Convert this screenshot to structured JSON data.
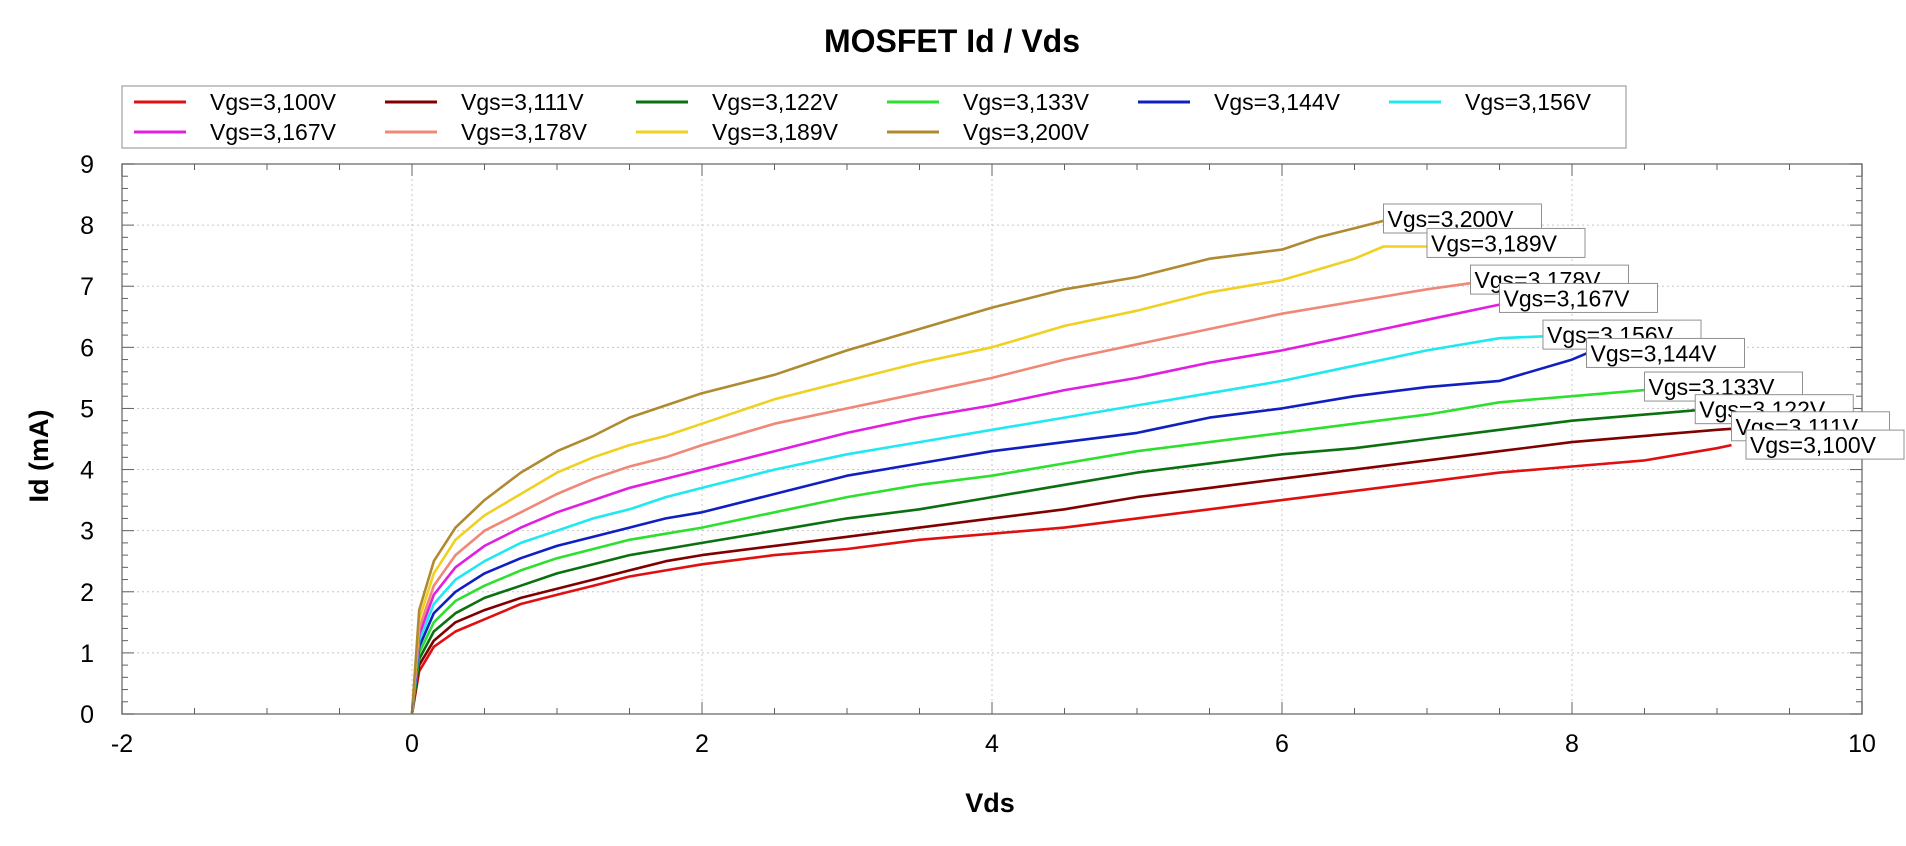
{
  "chart_data": {
    "type": "line",
    "title": "MOSFET Id / Vds",
    "xlabel": "Vds",
    "ylabel": "Id (mA)",
    "xlim": [
      -2,
      10
    ],
    "ylim": [
      0,
      9
    ],
    "x_ticks": [
      "-2",
      "0",
      "2",
      "4",
      "6",
      "8",
      "10"
    ],
    "y_ticks": [
      "0",
      "1",
      "2",
      "3",
      "4",
      "5",
      "6",
      "7",
      "8",
      "9"
    ],
    "grid": true,
    "legend_position": "top",
    "series": [
      {
        "name": "Vgs=3,100V",
        "color": "#e01010",
        "x": [
          0,
          0.05,
          0.15,
          0.3,
          0.5,
          0.75,
          1.0,
          1.25,
          1.5,
          1.75,
          2.0,
          2.5,
          3.0,
          3.5,
          4.0,
          4.5,
          5.0,
          5.5,
          6.0,
          6.5,
          7.0,
          7.5,
          8.0,
          8.5,
          9.0,
          9.1
        ],
        "y": [
          0,
          0.7,
          1.1,
          1.35,
          1.55,
          1.8,
          1.95,
          2.1,
          2.25,
          2.35,
          2.45,
          2.6,
          2.7,
          2.85,
          2.95,
          3.05,
          3.2,
          3.35,
          3.5,
          3.65,
          3.8,
          3.95,
          4.05,
          4.15,
          4.35,
          4.4
        ]
      },
      {
        "name": "Vgs=3,111V",
        "color": "#800000",
        "x": [
          0,
          0.05,
          0.15,
          0.3,
          0.5,
          0.75,
          1.0,
          1.25,
          1.5,
          1.75,
          2.0,
          2.5,
          3.0,
          3.5,
          4.0,
          4.5,
          5.0,
          5.5,
          6.0,
          6.5,
          7.0,
          7.5,
          8.0,
          8.5,
          9.0,
          9.3
        ],
        "y": [
          0,
          0.8,
          1.2,
          1.5,
          1.7,
          1.9,
          2.05,
          2.2,
          2.35,
          2.5,
          2.6,
          2.75,
          2.9,
          3.05,
          3.2,
          3.35,
          3.55,
          3.7,
          3.85,
          4.0,
          4.15,
          4.3,
          4.45,
          4.55,
          4.65,
          4.7
        ]
      },
      {
        "name": "Vgs=3,122V",
        "color": "#0a7010",
        "x": [
          0,
          0.05,
          0.15,
          0.3,
          0.5,
          0.75,
          1.0,
          1.25,
          1.5,
          1.75,
          2.0,
          2.5,
          3.0,
          3.5,
          4.0,
          4.5,
          5.0,
          5.5,
          6.0,
          6.5,
          7.0,
          7.5,
          8.0,
          8.5,
          9.0,
          9.3
        ],
        "y": [
          0,
          0.9,
          1.35,
          1.65,
          1.9,
          2.1,
          2.3,
          2.45,
          2.6,
          2.7,
          2.8,
          3.0,
          3.2,
          3.35,
          3.55,
          3.75,
          3.95,
          4.1,
          4.25,
          4.35,
          4.5,
          4.65,
          4.8,
          4.9,
          5.0,
          5.05
        ]
      },
      {
        "name": "Vgs=3,133V",
        "color": "#2ee02e",
        "x": [
          0,
          0.05,
          0.15,
          0.3,
          0.5,
          0.75,
          1.0,
          1.25,
          1.5,
          1.75,
          2.0,
          2.5,
          3.0,
          3.5,
          4.0,
          4.5,
          5.0,
          5.5,
          6.0,
          6.5,
          7.0,
          7.5,
          8.0,
          8.5,
          8.6
        ],
        "y": [
          0,
          1.0,
          1.5,
          1.85,
          2.1,
          2.35,
          2.55,
          2.7,
          2.85,
          2.95,
          3.05,
          3.3,
          3.55,
          3.75,
          3.9,
          4.1,
          4.3,
          4.45,
          4.6,
          4.75,
          4.9,
          5.1,
          5.2,
          5.3,
          5.35
        ]
      },
      {
        "name": "Vgs=3,144V",
        "color": "#1020c0",
        "x": [
          0,
          0.05,
          0.15,
          0.3,
          0.5,
          0.75,
          1.0,
          1.25,
          1.5,
          1.75,
          2.0,
          2.5,
          3.0,
          3.5,
          4.0,
          4.5,
          5.0,
          5.5,
          6.0,
          6.5,
          7.0,
          7.5,
          8.0,
          8.1
        ],
        "y": [
          0,
          1.1,
          1.65,
          2.0,
          2.3,
          2.55,
          2.75,
          2.9,
          3.05,
          3.2,
          3.3,
          3.6,
          3.9,
          4.1,
          4.3,
          4.45,
          4.6,
          4.85,
          5.0,
          5.2,
          5.35,
          5.45,
          5.8,
          5.9
        ]
      },
      {
        "name": "Vgs=3,156V",
        "color": "#20e8f0",
        "x": [
          0,
          0.05,
          0.15,
          0.3,
          0.5,
          0.75,
          1.0,
          1.25,
          1.5,
          1.75,
          2.0,
          2.5,
          3.0,
          3.5,
          4.0,
          4.5,
          5.0,
          5.5,
          6.0,
          6.5,
          7.0,
          7.5,
          8.0
        ],
        "y": [
          0,
          1.2,
          1.8,
          2.2,
          2.5,
          2.8,
          3.0,
          3.2,
          3.35,
          3.55,
          3.7,
          4.0,
          4.25,
          4.45,
          4.65,
          4.85,
          5.05,
          5.25,
          5.45,
          5.7,
          5.95,
          6.15,
          6.2
        ]
      },
      {
        "name": "Vgs=3,167V",
        "color": "#e020e0",
        "x": [
          0,
          0.05,
          0.15,
          0.3,
          0.5,
          0.75,
          1.0,
          1.25,
          1.5,
          1.75,
          2.0,
          2.5,
          3.0,
          3.5,
          4.0,
          4.5,
          5.0,
          5.5,
          6.0,
          6.5,
          7.0,
          7.5,
          7.6
        ],
        "y": [
          0,
          1.3,
          1.95,
          2.4,
          2.75,
          3.05,
          3.3,
          3.5,
          3.7,
          3.85,
          4.0,
          4.3,
          4.6,
          4.85,
          5.05,
          5.3,
          5.5,
          5.75,
          5.95,
          6.2,
          6.45,
          6.7,
          6.8
        ]
      },
      {
        "name": "Vgs=3,178V",
        "color": "#f08878",
        "x": [
          0,
          0.05,
          0.15,
          0.3,
          0.5,
          0.75,
          1.0,
          1.25,
          1.5,
          1.75,
          2.0,
          2.5,
          3.0,
          3.5,
          4.0,
          4.5,
          5.0,
          5.5,
          6.0,
          6.5,
          7.0,
          7.3
        ],
        "y": [
          0,
          1.4,
          2.1,
          2.6,
          3.0,
          3.3,
          3.6,
          3.85,
          4.05,
          4.2,
          4.4,
          4.75,
          5.0,
          5.25,
          5.5,
          5.8,
          6.05,
          6.3,
          6.55,
          6.75,
          6.95,
          7.05
        ]
      },
      {
        "name": "Vgs=3,189V",
        "color": "#f0d020",
        "x": [
          0,
          0.05,
          0.15,
          0.3,
          0.5,
          0.75,
          1.0,
          1.25,
          1.5,
          1.75,
          2.0,
          2.5,
          3.0,
          3.5,
          4.0,
          4.5,
          5.0,
          5.5,
          6.0,
          6.5,
          6.7,
          7.0
        ],
        "y": [
          0,
          1.55,
          2.3,
          2.85,
          3.25,
          3.6,
          3.95,
          4.2,
          4.4,
          4.55,
          4.75,
          5.15,
          5.45,
          5.75,
          6.0,
          6.35,
          6.6,
          6.9,
          7.1,
          7.45,
          7.65,
          7.65
        ]
      },
      {
        "name": "Vgs=3,200V",
        "color": "#b08a30",
        "x": [
          0,
          0.05,
          0.15,
          0.3,
          0.5,
          0.75,
          1.0,
          1.25,
          1.5,
          1.75,
          2.0,
          2.5,
          3.0,
          3.5,
          4.0,
          4.5,
          5.0,
          5.5,
          6.0,
          6.25,
          6.5,
          6.75
        ],
        "y": [
          0,
          1.7,
          2.5,
          3.05,
          3.5,
          3.95,
          4.3,
          4.55,
          4.85,
          5.05,
          5.25,
          5.55,
          5.95,
          6.3,
          6.65,
          6.95,
          7.15,
          7.45,
          7.6,
          7.8,
          7.95,
          8.1
        ]
      }
    ],
    "annotations": [
      {
        "text": "Vgs=3,200V",
        "x": 6.7,
        "y": 8.1
      },
      {
        "text": "Vgs=3,189V",
        "x": 7.0,
        "y": 7.7
      },
      {
        "text": "Vgs=3,178V",
        "x": 7.3,
        "y": 7.1
      },
      {
        "text": "Vgs=3,167V",
        "x": 7.5,
        "y": 6.8
      },
      {
        "text": "Vgs=3,156V",
        "x": 7.8,
        "y": 6.2
      },
      {
        "text": "Vgs=3,144V",
        "x": 8.1,
        "y": 5.9
      },
      {
        "text": "Vgs=3,133V",
        "x": 8.5,
        "y": 5.35
      },
      {
        "text": "Vgs=3,122V",
        "x": 8.85,
        "y": 4.98
      },
      {
        "text": "Vgs=3,111V",
        "x": 9.1,
        "y": 4.7
      },
      {
        "text": "Vgs=3,100V",
        "x": 9.2,
        "y": 4.4
      }
    ]
  }
}
